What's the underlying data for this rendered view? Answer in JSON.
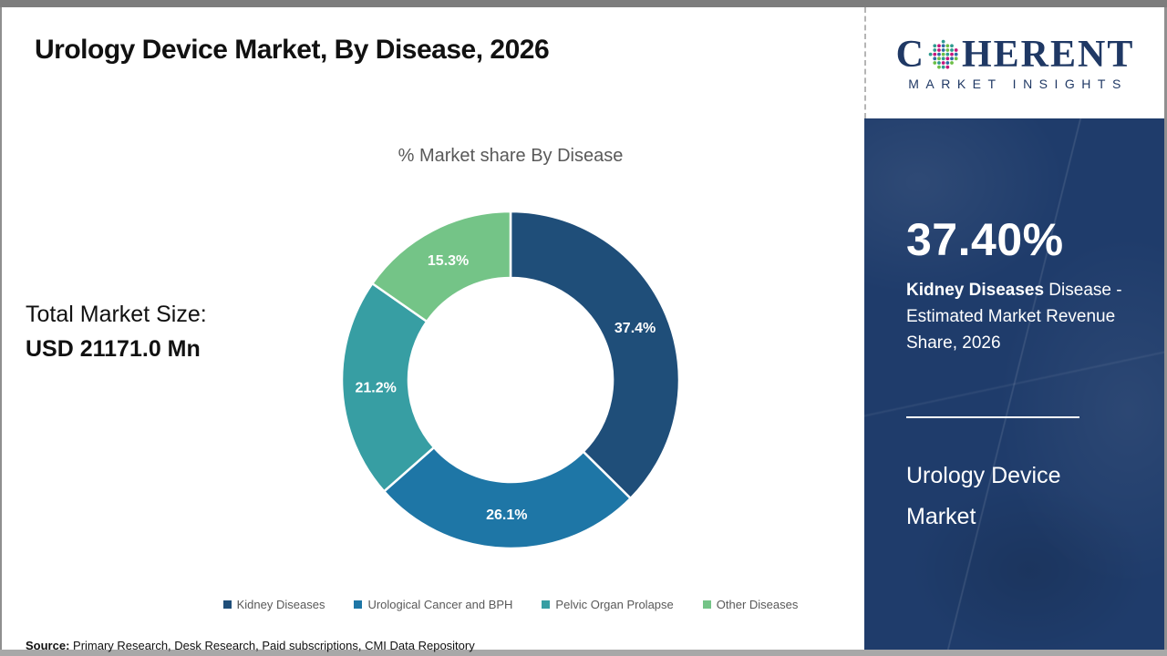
{
  "header": {
    "title": "Urology Device Market, By Disease, 2026"
  },
  "logo": {
    "word_start": "C",
    "word_end": "HERENT",
    "subtitle": "MARKET INSIGHTS",
    "brand_color": "#1f3864",
    "globe_dot_colors": [
      "#2e9b8f",
      "#6cbe45",
      "#2b6ca3",
      "#c4157c"
    ]
  },
  "left_panel": {
    "total_label": "Total Market Size:",
    "total_value": "USD 21171.0 Mn"
  },
  "chart_data": {
    "type": "pie",
    "subtype": "donut",
    "title": "% Market share By Disease",
    "categories": [
      "Kidney Diseases",
      "Urological Cancer and BPH",
      "Pelvic Organ Prolapse",
      "Other Diseases"
    ],
    "values": [
      37.4,
      26.1,
      21.2,
      15.3
    ],
    "labels": [
      "37.4%",
      "26.1%",
      "21.2%",
      "15.3%"
    ],
    "colors": [
      "#1F4E79",
      "#1E76A6",
      "#379EA3",
      "#74C487"
    ],
    "start_angle_deg": 0,
    "direction": "clockwise",
    "outer_radius": 185,
    "inner_radius": 112,
    "label_radius": 148,
    "legend_position": "bottom"
  },
  "sidebar": {
    "stat_value": "37.40%",
    "stat_bold": "Kidney Diseases",
    "stat_rest": " Disease - Estimated Market Revenue Share, 2026",
    "market_name": "Urology Device Market",
    "bg_color": "#1f3c6b"
  },
  "footer": {
    "source_label": "Source:",
    "source_text": " Primary Research, Desk Research, Paid subscriptions, CMI Data Repository"
  }
}
